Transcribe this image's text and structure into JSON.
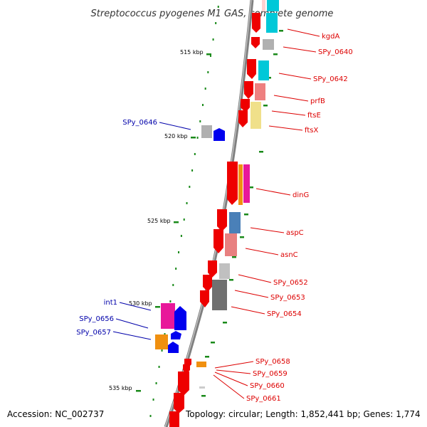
{
  "title": "Streptococcus pyogenes M1 GAS, complete genome",
  "footer": {
    "accession": "Accession: NC_002737",
    "topology": "Topology: circular; Length: 1,852,441 bp; Genes: 1,774"
  },
  "colors": {
    "backbone": "#808080",
    "tick": "#1a8a1a",
    "label_red": "#dd0000",
    "label_blue": "#0000aa"
  },
  "ticks": [
    {
      "label": "515 kbp"
    },
    {
      "label": "520 kbp"
    },
    {
      "label": "525 kbp"
    },
    {
      "label": "530 kbp"
    },
    {
      "label": "535 kbp"
    }
  ],
  "labels_right": [
    {
      "text": "kgdA"
    },
    {
      "text": "SPy_0640"
    },
    {
      "text": "SPy_0642"
    },
    {
      "text": "prfB"
    },
    {
      "text": "ftsE"
    },
    {
      "text": "ftsX"
    },
    {
      "text": "dinG"
    },
    {
      "text": "aspC"
    },
    {
      "text": "asnC"
    },
    {
      "text": "SPy_0652"
    },
    {
      "text": "SPy_0653"
    },
    {
      "text": "SPy_0654"
    },
    {
      "text": "SPy_0658"
    },
    {
      "text": "SPy_0659"
    },
    {
      "text": "SPy_0660"
    },
    {
      "text": "SPy_0661"
    }
  ],
  "labels_left": [
    {
      "text": "SPy_0646"
    },
    {
      "text": "int1"
    },
    {
      "text": "SPy_0656"
    },
    {
      "text": "SPy_0657"
    }
  ]
}
